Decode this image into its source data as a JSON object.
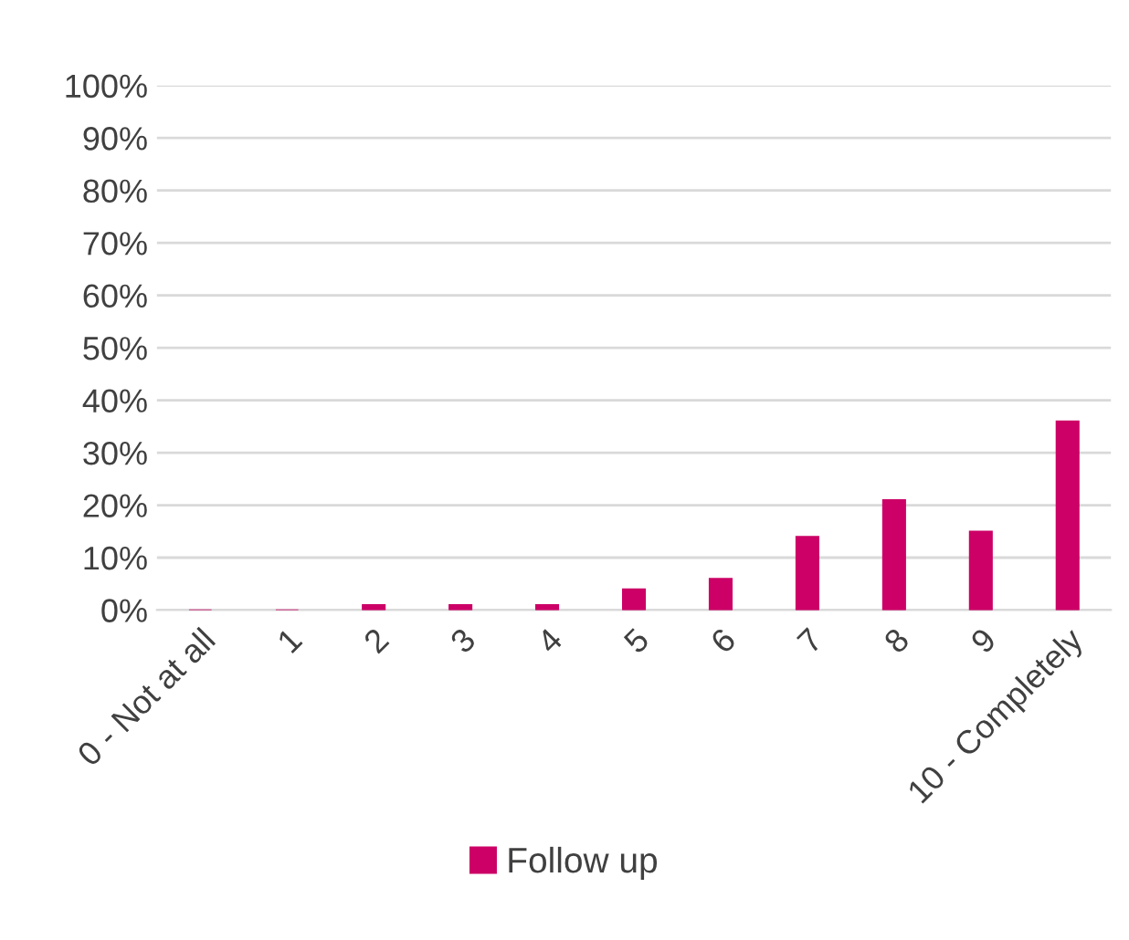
{
  "chart_data": {
    "type": "bar",
    "categories": [
      "0 - Not at all",
      "1",
      "2",
      "3",
      "4",
      "5",
      "6",
      "7",
      "8",
      "9",
      "10 - Completely"
    ],
    "series": [
      {
        "name": "Follow up",
        "color": "#cc0066",
        "values": [
          0,
          0,
          1,
          1,
          1,
          4,
          6,
          14,
          21,
          15,
          36
        ]
      }
    ],
    "ylim": [
      0,
      100
    ],
    "yticks": [
      {
        "value": 0,
        "label": "0%"
      },
      {
        "value": 10,
        "label": "10%"
      },
      {
        "value": 20,
        "label": "20%"
      },
      {
        "value": 30,
        "label": "30%"
      },
      {
        "value": 40,
        "label": "40%"
      },
      {
        "value": 50,
        "label": "50%"
      },
      {
        "value": 60,
        "label": "60%"
      },
      {
        "value": 70,
        "label": "70%"
      },
      {
        "value": 80,
        "label": "80%"
      },
      {
        "value": 90,
        "label": "90%"
      },
      {
        "value": 100,
        "label": "100%"
      }
    ],
    "grid": "y",
    "legend": "bottom"
  }
}
